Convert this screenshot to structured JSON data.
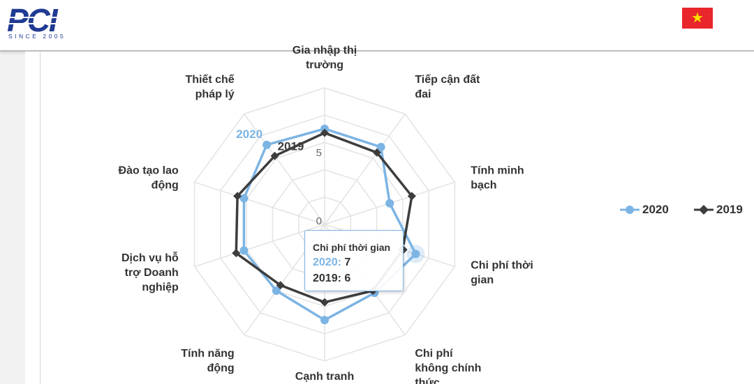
{
  "header": {
    "logo_text": "PCI",
    "logo_tagline": "SINCE 2005",
    "flag_icon": "vietnam-flag-icon",
    "flag_star": "★"
  },
  "colors": {
    "series_2020": "#7cb4e4",
    "series_2019": "#3d3d3d",
    "grid": "#e3e3e3"
  },
  "chart_data": {
    "type": "radar",
    "categories": [
      "Gia nhập thị trường",
      "Tiếp cận đất đai",
      "Tính minh bạch",
      "Chi phí thời gian",
      "Chi phí không chính thức",
      "Cạnh tranh",
      "Tính năng động",
      "Dịch vụ hỗ trợ Doanh nghiệp",
      "Đào tạo lao động",
      "Thiết chế pháp lý"
    ],
    "category_lines": [
      [
        "Gia nhập thị",
        "trường"
      ],
      [
        "Tiếp cận đất",
        "đai"
      ],
      [
        "Tính minh",
        "bạch"
      ],
      [
        "Chi phí thời",
        "gian"
      ],
      [
        "Chi phí",
        "không chính",
        "thức"
      ],
      [
        "Cạnh tranh"
      ],
      [
        "Tính năng",
        "động"
      ],
      [
        "Dịch vụ hỗ",
        "trợ Doanh",
        "nghiệp"
      ],
      [
        "Đào tạo lao",
        "động"
      ],
      [
        "Thiết chế",
        "pháp lý"
      ]
    ],
    "series": [
      {
        "name": "2020",
        "values": [
          7,
          7,
          5,
          7,
          6.2,
          7,
          6,
          6.2,
          6.2,
          7.2
        ]
      },
      {
        "name": "2019",
        "values": [
          6.7,
          6.5,
          6.7,
          6,
          6,
          5.7,
          5.5,
          6.8,
          6.7,
          6.2
        ]
      }
    ],
    "radial_tick_labels": [
      "0",
      "5"
    ],
    "radial_range": [
      0,
      10
    ],
    "grid_levels": 5,
    "series_tag_labels": [
      "2020",
      "2019"
    ],
    "legend": {
      "position": "right",
      "items": [
        "2020",
        "2019"
      ]
    },
    "tooltip": {
      "title": "Chi phí thời gian",
      "rows": [
        {
          "key": "2020:",
          "value": "7"
        },
        {
          "key": "2019:",
          "value": "6"
        }
      ]
    },
    "highlighted_category_index": 3
  }
}
